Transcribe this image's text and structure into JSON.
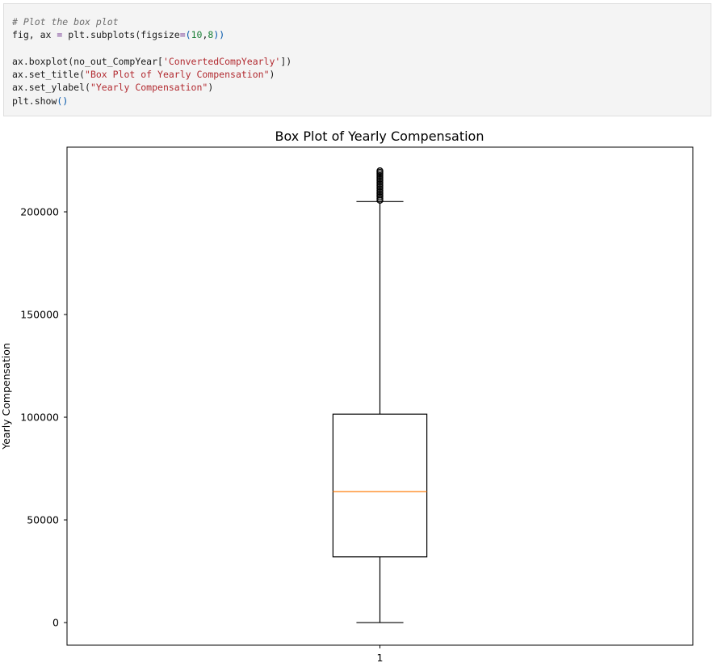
{
  "code_cell": {
    "lines": [
      [
        {
          "t": "# Plot the box plot",
          "c": "cm"
        }
      ],
      [
        {
          "t": "fig, ax ",
          "c": ""
        },
        {
          "t": "=",
          "c": "op"
        },
        {
          "t": " plt.subplots(figsize",
          "c": ""
        },
        {
          "t": "=",
          "c": "op"
        },
        {
          "t": "(",
          "c": "paren"
        },
        {
          "t": "10",
          "c": "num"
        },
        {
          "t": ",",
          "c": ""
        },
        {
          "t": "8",
          "c": "num"
        },
        {
          "t": "))",
          "c": "paren"
        }
      ],
      [],
      [
        {
          "t": "ax.boxplot(no_out_CompYear[",
          "c": ""
        },
        {
          "t": "'ConvertedCompYearly'",
          "c": "str"
        },
        {
          "t": "])",
          "c": ""
        }
      ],
      [
        {
          "t": "ax.set_title(",
          "c": ""
        },
        {
          "t": "\"Box Plot of Yearly Compensation\"",
          "c": "str"
        },
        {
          "t": ")",
          "c": ""
        }
      ],
      [
        {
          "t": "ax.set_ylabel(",
          "c": ""
        },
        {
          "t": "\"Yearly Compensation\"",
          "c": "str"
        },
        {
          "t": ")",
          "c": ""
        }
      ],
      [
        {
          "t": "plt.show",
          "c": ""
        },
        {
          "t": "()",
          "c": "paren"
        }
      ]
    ]
  },
  "chart_data": {
    "type": "box",
    "title": "Box Plot of Yearly Compensation",
    "xlabel": "",
    "ylabel": "Yearly Compensation",
    "categories": [
      "1"
    ],
    "ylim": [
      -11000,
      231500
    ],
    "yticks": [
      0,
      50000,
      100000,
      150000,
      200000
    ],
    "ytick_labels": [
      "0",
      "50000",
      "100000",
      "150000",
      "200000"
    ],
    "box": {
      "whisker_low": 0,
      "q1": 32000,
      "median": 63800,
      "q3": 101500,
      "whisker_high": 205000
    },
    "outliers": [
      205600,
      206400,
      207300,
      208100,
      208900,
      209700,
      210500,
      211300,
      212100,
      212900,
      213700,
      214500,
      215300,
      216100,
      216900,
      217700,
      218500,
      219300,
      220000
    ],
    "colors": {
      "box": "#000000",
      "median": "#ff7f0e",
      "background": "#ffffff"
    }
  }
}
